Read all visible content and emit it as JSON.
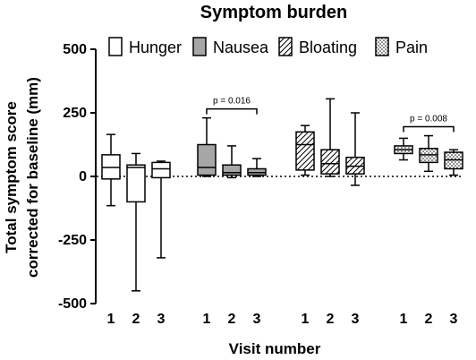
{
  "chart_data": {
    "type": "boxplot",
    "title": "Symptom burden",
    "xlabel": "Visit number",
    "ylabel_line1": "Total symptom score",
    "ylabel_line2": "corrected for baseline (mm)",
    "ylim": [
      -500,
      500
    ],
    "yticks": [
      "500",
      "250",
      "0",
      "-250",
      "-500"
    ],
    "reference_line": 0,
    "legend_position": "top",
    "legend": [
      {
        "name": "Hunger",
        "pattern": "white"
      },
      {
        "name": "Nausea",
        "pattern": "gray"
      },
      {
        "name": "Bloating",
        "pattern": "hatch"
      },
      {
        "name": "Pain",
        "pattern": "dots"
      }
    ],
    "groups": [
      {
        "name": "Hunger",
        "pattern": "white",
        "boxes": [
          {
            "visit": "1",
            "min": -115,
            "q1": -10,
            "median": 35,
            "q3": 85,
            "max": 165
          },
          {
            "visit": "2",
            "min": -450,
            "q1": -100,
            "median": 35,
            "q3": 45,
            "max": 90
          },
          {
            "visit": "3",
            "min": -320,
            "q1": -5,
            "median": 30,
            "q3": 55,
            "max": 60
          }
        ]
      },
      {
        "name": "Nausea",
        "pattern": "gray",
        "boxes": [
          {
            "visit": "1",
            "min": 0,
            "q1": 5,
            "median": 35,
            "q3": 125,
            "max": 230
          },
          {
            "visit": "2",
            "min": -5,
            "q1": 5,
            "median": 15,
            "q3": 45,
            "max": 120
          },
          {
            "visit": "3",
            "min": 0,
            "q1": 5,
            "median": 15,
            "q3": 30,
            "max": 70
          }
        ],
        "annotation": {
          "text": "p = 0.016",
          "from_visit": "1",
          "to_visit": "3"
        }
      },
      {
        "name": "Bloating",
        "pattern": "hatch",
        "boxes": [
          {
            "visit": "1",
            "min": 5,
            "q1": 25,
            "median": 125,
            "q3": 175,
            "max": 200
          },
          {
            "visit": "2",
            "min": 0,
            "q1": 10,
            "median": 50,
            "q3": 105,
            "max": 305
          },
          {
            "visit": "3",
            "min": -35,
            "q1": 10,
            "median": 40,
            "q3": 75,
            "max": 250
          }
        ]
      },
      {
        "name": "Pain",
        "pattern": "dots",
        "boxes": [
          {
            "visit": "1",
            "min": 65,
            "q1": 90,
            "median": 105,
            "q3": 120,
            "max": 150
          },
          {
            "visit": "2",
            "min": 20,
            "q1": 55,
            "median": 85,
            "q3": 110,
            "max": 160
          },
          {
            "visit": "3",
            "min": 5,
            "q1": 30,
            "median": 65,
            "q3": 95,
            "max": 105
          }
        ],
        "annotation": {
          "text": "p = 0.008",
          "from_visit": "1",
          "to_visit": "3"
        }
      }
    ]
  }
}
